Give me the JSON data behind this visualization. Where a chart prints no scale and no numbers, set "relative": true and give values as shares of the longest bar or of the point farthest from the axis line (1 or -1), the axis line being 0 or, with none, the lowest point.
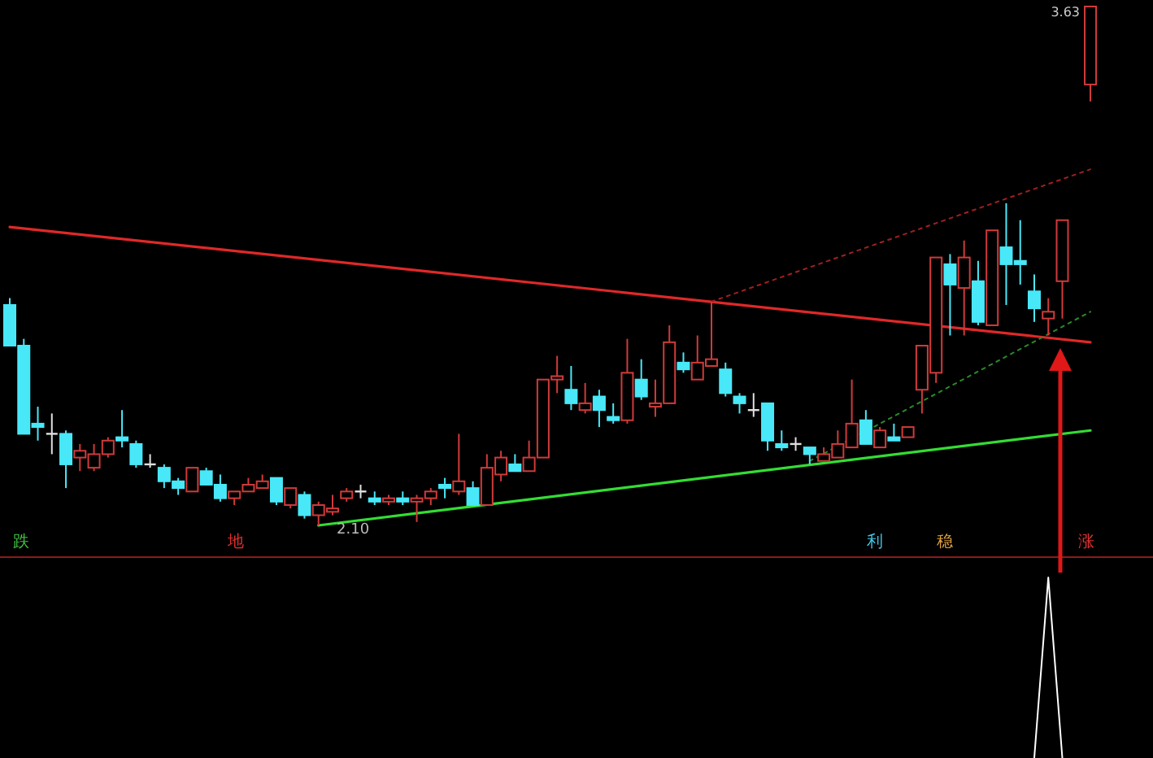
{
  "chart_data": [
    {
      "type": "candlestick",
      "categories": [
        null,
        null,
        null,
        null,
        null,
        null,
        null,
        null,
        null,
        null,
        null,
        null,
        null,
        null,
        null,
        null,
        null,
        null,
        null,
        null,
        null,
        null,
        null,
        null,
        null,
        null,
        null,
        null,
        null,
        null,
        null,
        null,
        null,
        null,
        null,
        null,
        null,
        null,
        null,
        null,
        null,
        null,
        null,
        null,
        null,
        null,
        null,
        null,
        null,
        null,
        null,
        null,
        null,
        null,
        null,
        null,
        null,
        null,
        null,
        null,
        null,
        null,
        null,
        null,
        null,
        null,
        null,
        null,
        null,
        null,
        null,
        null,
        null,
        null,
        null,
        null,
        null,
        null
      ],
      "ohlc": [
        [
          2.75,
          2.77,
          2.63,
          2.63
        ],
        [
          2.63,
          2.65,
          2.37,
          2.37
        ],
        [
          2.4,
          2.45,
          2.35,
          2.39
        ],
        [
          2.37,
          2.43,
          2.31,
          2.37
        ],
        [
          2.37,
          2.38,
          2.21,
          2.28
        ],
        [
          2.3,
          2.34,
          2.26,
          2.32
        ],
        [
          2.27,
          2.34,
          2.26,
          2.31
        ],
        [
          2.31,
          2.36,
          2.3,
          2.35
        ],
        [
          2.36,
          2.44,
          2.33,
          2.35
        ],
        [
          2.34,
          2.35,
          2.27,
          2.28
        ],
        [
          2.28,
          2.31,
          2.27,
          2.28
        ],
        [
          2.27,
          2.28,
          2.21,
          2.23
        ],
        [
          2.23,
          2.24,
          2.19,
          2.21
        ],
        [
          2.2,
          2.27,
          2.2,
          2.27
        ],
        [
          2.26,
          2.27,
          2.22,
          2.22
        ],
        [
          2.22,
          2.25,
          2.17,
          2.18
        ],
        [
          2.18,
          2.2,
          2.16,
          2.2
        ],
        [
          2.2,
          2.24,
          2.2,
          2.22
        ],
        [
          2.21,
          2.25,
          2.21,
          2.23
        ],
        [
          2.24,
          2.24,
          2.16,
          2.17
        ],
        [
          2.16,
          2.21,
          2.15,
          2.21
        ],
        [
          2.19,
          2.2,
          2.12,
          2.13
        ],
        [
          2.13,
          2.17,
          2.1,
          2.16
        ],
        [
          2.14,
          2.19,
          2.13,
          2.15
        ],
        [
          2.18,
          2.21,
          2.17,
          2.2
        ],
        [
          2.2,
          2.22,
          2.18,
          2.2
        ],
        [
          2.18,
          2.2,
          2.16,
          2.17
        ],
        [
          2.17,
          2.19,
          2.16,
          2.18
        ],
        [
          2.18,
          2.2,
          2.16,
          2.17
        ],
        [
          2.17,
          2.19,
          2.11,
          2.18
        ],
        [
          2.18,
          2.21,
          2.16,
          2.2
        ],
        [
          2.22,
          2.24,
          2.18,
          2.21
        ],
        [
          2.2,
          2.37,
          2.19,
          2.23
        ],
        [
          2.21,
          2.23,
          2.16,
          2.16
        ],
        [
          2.16,
          2.31,
          2.16,
          2.27
        ],
        [
          2.25,
          2.32,
          2.23,
          2.3
        ],
        [
          2.28,
          2.31,
          2.26,
          2.26
        ],
        [
          2.26,
          2.35,
          2.26,
          2.3
        ],
        [
          2.3,
          2.53,
          2.3,
          2.53
        ],
        [
          2.53,
          2.6,
          2.49,
          2.54
        ],
        [
          2.5,
          2.57,
          2.44,
          2.46
        ],
        [
          2.44,
          2.52,
          2.43,
          2.46
        ],
        [
          2.48,
          2.5,
          2.39,
          2.44
        ],
        [
          2.42,
          2.46,
          2.4,
          2.41
        ],
        [
          2.41,
          2.65,
          2.4,
          2.55
        ],
        [
          2.53,
          2.59,
          2.47,
          2.48
        ],
        [
          2.45,
          2.53,
          2.42,
          2.46
        ],
        [
          2.46,
          2.69,
          2.46,
          2.64
        ],
        [
          2.58,
          2.61,
          2.55,
          2.56
        ],
        [
          2.53,
          2.66,
          2.53,
          2.58
        ],
        [
          2.57,
          2.76,
          2.57,
          2.59
        ],
        [
          2.56,
          2.58,
          2.48,
          2.49
        ],
        [
          2.48,
          2.49,
          2.43,
          2.46
        ],
        [
          2.44,
          2.49,
          2.42,
          2.44
        ],
        [
          2.46,
          2.46,
          2.32,
          2.35
        ],
        [
          2.34,
          2.38,
          2.32,
          2.33
        ],
        [
          2.34,
          2.36,
          2.32,
          2.34
        ],
        [
          2.33,
          2.33,
          2.28,
          2.31
        ],
        [
          2.29,
          2.33,
          2.29,
          2.31
        ],
        [
          2.3,
          2.38,
          2.3,
          2.34
        ],
        [
          2.33,
          2.53,
          2.33,
          2.4
        ],
        [
          2.41,
          2.44,
          2.34,
          2.34
        ],
        [
          2.33,
          2.39,
          2.33,
          2.38
        ],
        [
          2.36,
          2.4,
          2.35,
          2.35
        ],
        [
          2.36,
          2.39,
          2.36,
          2.39
        ],
        [
          2.5,
          2.63,
          2.43,
          2.63
        ],
        [
          2.55,
          2.89,
          2.52,
          2.89
        ],
        [
          2.87,
          2.9,
          2.66,
          2.81
        ],
        [
          2.8,
          2.94,
          2.66,
          2.89
        ],
        [
          2.82,
          2.88,
          2.69,
          2.7
        ],
        [
          2.69,
          2.97,
          2.69,
          2.97
        ],
        [
          2.92,
          3.05,
          2.75,
          2.87
        ],
        [
          2.88,
          3.0,
          2.81,
          2.87
        ],
        [
          2.79,
          2.84,
          2.7,
          2.74
        ],
        [
          2.71,
          2.77,
          2.66,
          2.73
        ],
        [
          2.82,
          3.0,
          2.71,
          3.0
        ],
        null,
        [
          3.4,
          3.63,
          3.35,
          3.63
        ]
      ],
      "series": [
        {
          "type": "line",
          "color": "#e02828",
          "line_style": "solid",
          "values": [
            2.98,
            null,
            null,
            null,
            null,
            null,
            null,
            null,
            null,
            null,
            null,
            null,
            null,
            null,
            null,
            null,
            null,
            null,
            null,
            null,
            null,
            null,
            null,
            null,
            null,
            null,
            null,
            null,
            null,
            null,
            null,
            null,
            null,
            null,
            null,
            null,
            null,
            null,
            null,
            null,
            null,
            null,
            null,
            null,
            null,
            null,
            null,
            null,
            null,
            null,
            null,
            null,
            null,
            null,
            null,
            null,
            null,
            null,
            null,
            null,
            null,
            null,
            null,
            null,
            null,
            null,
            null,
            null,
            null,
            null,
            null,
            null,
            null,
            null,
            null,
            null,
            null,
            2.64
          ]
        },
        {
          "type": "line",
          "color": "#a02020",
          "line_style": "dotted",
          "values": [
            null,
            null,
            null,
            null,
            null,
            null,
            null,
            null,
            null,
            null,
            null,
            null,
            null,
            null,
            null,
            null,
            null,
            null,
            null,
            null,
            null,
            null,
            null,
            null,
            null,
            null,
            null,
            null,
            null,
            null,
            null,
            null,
            null,
            null,
            null,
            null,
            null,
            null,
            null,
            null,
            null,
            null,
            null,
            null,
            null,
            null,
            null,
            null,
            null,
            null,
            2.76,
            null,
            null,
            null,
            null,
            null,
            null,
            null,
            null,
            null,
            null,
            null,
            null,
            null,
            null,
            null,
            null,
            null,
            null,
            null,
            null,
            null,
            null,
            null,
            null,
            null,
            null,
            3.15
          ]
        },
        {
          "type": "line",
          "color": "#33dd33",
          "line_style": "solid",
          "values": [
            null,
            null,
            null,
            null,
            null,
            null,
            null,
            null,
            null,
            null,
            null,
            null,
            null,
            null,
            null,
            null,
            null,
            null,
            null,
            null,
            null,
            null,
            2.1,
            null,
            null,
            null,
            null,
            null,
            null,
            null,
            null,
            null,
            null,
            null,
            null,
            null,
            null,
            null,
            null,
            null,
            null,
            null,
            null,
            null,
            null,
            null,
            null,
            null,
            null,
            null,
            null,
            null,
            null,
            null,
            null,
            null,
            null,
            null,
            null,
            null,
            null,
            null,
            null,
            null,
            null,
            null,
            null,
            null,
            null,
            null,
            null,
            null,
            null,
            null,
            null,
            null,
            null,
            2.38
          ]
        },
        {
          "type": "line",
          "color": "#2a8a2a",
          "line_style": "dotted",
          "values": [
            null,
            null,
            null,
            null,
            null,
            null,
            null,
            null,
            null,
            null,
            null,
            null,
            null,
            null,
            null,
            null,
            null,
            null,
            null,
            null,
            null,
            null,
            null,
            null,
            null,
            null,
            null,
            null,
            null,
            null,
            null,
            null,
            null,
            null,
            null,
            null,
            null,
            null,
            null,
            null,
            null,
            null,
            null,
            null,
            null,
            null,
            null,
            null,
            null,
            null,
            null,
            null,
            null,
            null,
            null,
            null,
            null,
            2.29,
            null,
            null,
            null,
            null,
            null,
            null,
            null,
            null,
            null,
            null,
            null,
            null,
            null,
            null,
            null,
            null,
            null,
            null,
            null,
            2.73
          ]
        }
      ],
      "annotations": [
        "3.63",
        "2.10",
        "跌",
        "地",
        "利",
        "稳",
        "涨"
      ]
    },
    {
      "type": "line",
      "relative": true,
      "categories": [
        null,
        null,
        null,
        null,
        null,
        null,
        null,
        null,
        null,
        null,
        null,
        null,
        null,
        null,
        null,
        null,
        null,
        null,
        null,
        null,
        null,
        null,
        null,
        null,
        null,
        null,
        null,
        null,
        null,
        null,
        null,
        null,
        null,
        null,
        null,
        null,
        null,
        null,
        null,
        null,
        null,
        null,
        null,
        null,
        null,
        null,
        null,
        null,
        null,
        null,
        null,
        null,
        null,
        null,
        null,
        null,
        null,
        null,
        null,
        null,
        null,
        null,
        null,
        null,
        null,
        null,
        null,
        null,
        null,
        null,
        null,
        null,
        null,
        null,
        null,
        null,
        null,
        null
      ],
      "series": [
        {
          "color": "#ffffff",
          "values": [
            null,
            null,
            null,
            null,
            null,
            null,
            null,
            null,
            null,
            null,
            null,
            null,
            null,
            null,
            null,
            null,
            null,
            null,
            null,
            null,
            null,
            null,
            null,
            null,
            null,
            null,
            null,
            null,
            null,
            null,
            null,
            null,
            null,
            null,
            null,
            null,
            null,
            null,
            null,
            null,
            null,
            null,
            null,
            null,
            null,
            null,
            null,
            null,
            null,
            null,
            null,
            null,
            null,
            null,
            null,
            null,
            null,
            null,
            null,
            null,
            null,
            null,
            null,
            null,
            null,
            null,
            null,
            null,
            null,
            null,
            null,
            null,
            null,
            0,
            1,
            0,
            null,
            null
          ]
        }
      ]
    }
  ]
}
